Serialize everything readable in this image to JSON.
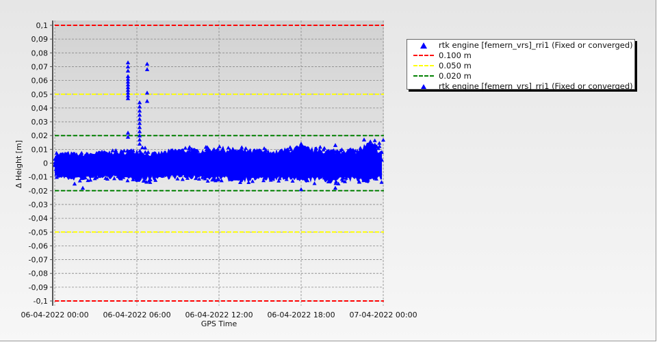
{
  "chart_data": {
    "type": "scatter",
    "title": "",
    "xlabel": "GPS Time",
    "ylabel": "Δ Height [m]",
    "ylim": [
      -0.1,
      0.1
    ],
    "xlim_hours": [
      0,
      24
    ],
    "x_ticks": [
      "06-04-2022 00:00",
      "06-04-2022 06:00",
      "06-04-2022 12:00",
      "06-04-2022 18:00",
      "07-04-2022 00:00"
    ],
    "y_ticks": [
      "0,1",
      "0,09",
      "0,08",
      "0,07",
      "0,06",
      "0,05",
      "0,04",
      "0,03",
      "0,02",
      "0,01",
      "0",
      "-0,01",
      "-0,02",
      "-0,03",
      "-0,04",
      "-0,05",
      "-0,06",
      "-0,07",
      "-0,08",
      "-0,09",
      "-0,1"
    ],
    "grid": true,
    "legend_placement": "right",
    "series": [
      {
        "name": "rtk engine [femern_vrs]_rri1 (Fixed or converged)",
        "color": "#0000ff",
        "marker": "triangle",
        "band_hourly_max": [
          0.008,
          0.009,
          0.008,
          0.009,
          0.01,
          0.01,
          0.012,
          0.008,
          0.01,
          0.012,
          0.011,
          0.012,
          0.013,
          0.012,
          0.011,
          0.011,
          0.01,
          0.012,
          0.014,
          0.012,
          0.011,
          0.011,
          0.011,
          0.017,
          0.009
        ],
        "band_hourly_min": [
          -0.011,
          -0.013,
          -0.013,
          -0.012,
          -0.012,
          -0.013,
          -0.014,
          -0.013,
          -0.012,
          -0.012,
          -0.012,
          -0.013,
          -0.013,
          -0.014,
          -0.014,
          -0.013,
          -0.014,
          -0.013,
          -0.015,
          -0.014,
          -0.015,
          -0.014,
          -0.014,
          -0.015,
          -0.012
        ],
        "outliers": [
          [
            5.35,
            0.073
          ],
          [
            5.35,
            0.07
          ],
          [
            5.35,
            0.067
          ],
          [
            5.35,
            0.063
          ],
          [
            5.35,
            0.061
          ],
          [
            5.35,
            0.059
          ],
          [
            5.35,
            0.057
          ],
          [
            5.35,
            0.055
          ],
          [
            5.35,
            0.053
          ],
          [
            5.35,
            0.051
          ],
          [
            5.35,
            0.049
          ],
          [
            5.35,
            0.047
          ],
          [
            5.35,
            0.022
          ],
          [
            5.35,
            0.019
          ],
          [
            6.2,
            0.044
          ],
          [
            6.2,
            0.041
          ],
          [
            6.2,
            0.038
          ],
          [
            6.2,
            0.035
          ],
          [
            6.2,
            0.032
          ],
          [
            6.2,
            0.029
          ],
          [
            6.2,
            0.026
          ],
          [
            6.2,
            0.023
          ],
          [
            6.2,
            0.02
          ],
          [
            6.2,
            0.017
          ],
          [
            6.2,
            0.014
          ],
          [
            6.75,
            0.072
          ],
          [
            6.75,
            0.068
          ],
          [
            6.75,
            0.051
          ],
          [
            6.75,
            0.045
          ],
          [
            2.05,
            -0.018
          ],
          [
            1.45,
            -0.015
          ],
          [
            18.0,
            0.014
          ],
          [
            18.0,
            -0.019
          ],
          [
            20.5,
            -0.018
          ],
          [
            20.5,
            0.013
          ],
          [
            22.6,
            0.017
          ]
        ]
      }
    ],
    "reference_lines": [
      {
        "name": "0.100 m",
        "values": [
          0.1,
          -0.1
        ],
        "color": "#ff0000"
      },
      {
        "name": "0.050 m",
        "values": [
          0.05,
          -0.05
        ],
        "color": "#ffff00"
      },
      {
        "name": "0.020 m",
        "values": [
          0.02,
          -0.02
        ],
        "color": "#008000"
      }
    ]
  },
  "legend": {
    "items": [
      {
        "label": "rtk engine [femern_vrs]_rri1 (Fixed or converged)"
      },
      {
        "label": "0.100 m"
      },
      {
        "label": "0.050 m"
      },
      {
        "label": "0.020 m"
      },
      {
        "label": "rtk engine [femern_vrs]_rri1 (Fixed or converged)"
      }
    ]
  }
}
